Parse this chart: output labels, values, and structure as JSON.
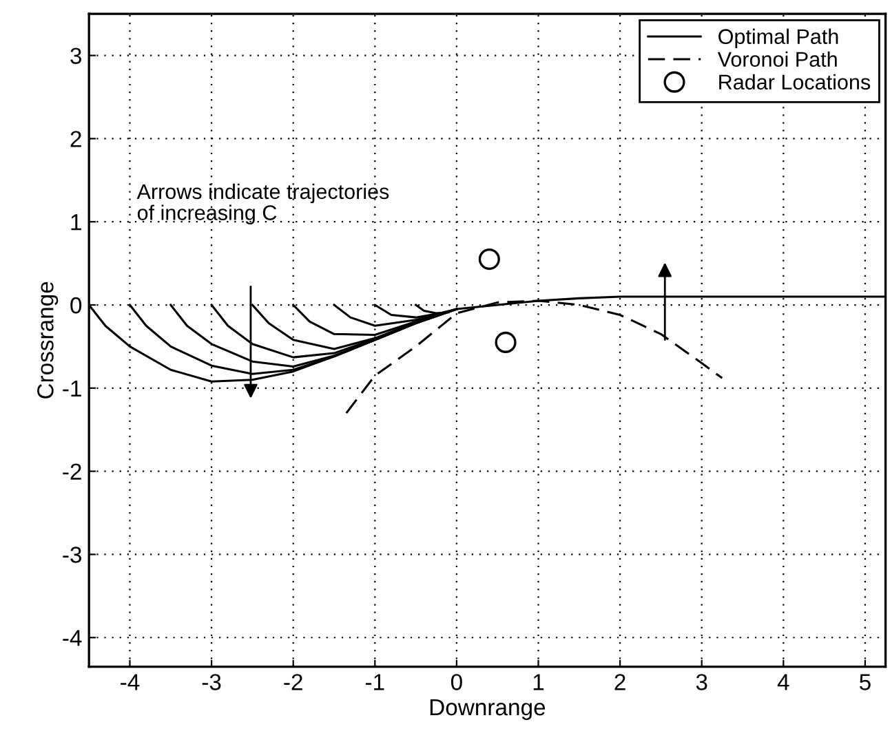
{
  "chart_data": {
    "type": "line",
    "xlabel": "Downrange",
    "ylabel": "Crossrange",
    "xlim": [
      -4.5,
      5.25
    ],
    "ylim": [
      -4.35,
      3.5
    ],
    "xticks": [
      -4,
      -3,
      -2,
      -1,
      0,
      1,
      2,
      3,
      4,
      5
    ],
    "yticks": [
      -4,
      -3,
      -2,
      -1,
      0,
      1,
      2,
      3
    ],
    "grid": true,
    "legend": "top right",
    "annotations": [
      "Arrows indicate trajectories\nof increasing C"
    ],
    "series": [
      {
        "name": "Optimal Path",
        "color": "#000000",
        "line_style": "solid",
        "x": [
          -4.5,
          -4.3,
          -4,
          -3.5,
          -3,
          -2.5,
          -2,
          -1.5,
          -1,
          -0.5,
          0,
          0.5,
          1,
          1.5,
          2,
          3,
          5.25
        ],
        "values": [
          0,
          -0.25,
          -0.5,
          -0.78,
          -0.92,
          -0.9,
          -0.8,
          -0.62,
          -0.42,
          -0.22,
          -0.05,
          0.0,
          0.05,
          0.08,
          0.1,
          0.1,
          0.1
        ]
      },
      {
        "color": "#000000",
        "line_style": "solid",
        "x": [
          -4,
          -3.8,
          -3.5,
          -3,
          -2.5,
          -2,
          -1.5,
          -1,
          -0.5,
          0
        ],
        "values": [
          0,
          -0.25,
          -0.5,
          -0.73,
          -0.83,
          -0.78,
          -0.62,
          -0.42,
          -0.22,
          -0.05
        ]
      },
      {
        "color": "#000000",
        "line_style": "solid",
        "x": [
          -3.5,
          -3.3,
          -3,
          -2.5,
          -2,
          -1.5,
          -1,
          -0.5,
          0
        ],
        "values": [
          0,
          -0.25,
          -0.47,
          -0.68,
          -0.74,
          -0.61,
          -0.42,
          -0.22,
          -0.05
        ]
      },
      {
        "color": "#000000",
        "line_style": "solid",
        "x": [
          -3,
          -2.8,
          -2.5,
          -2,
          -1.5,
          -1,
          -0.5,
          0
        ],
        "values": [
          0,
          -0.25,
          -0.47,
          -0.63,
          -0.58,
          -0.41,
          -0.22,
          -0.05
        ]
      },
      {
        "color": "#000000",
        "line_style": "solid",
        "x": [
          -2.5,
          -2.3,
          -2,
          -1.5,
          -1,
          -0.5,
          0
        ],
        "values": [
          0,
          -0.22,
          -0.42,
          -0.53,
          -0.4,
          -0.21,
          -0.05
        ]
      },
      {
        "color": "#000000",
        "line_style": "solid",
        "x": [
          -2,
          -1.8,
          -1.5,
          -1,
          -0.5,
          0
        ],
        "values": [
          0,
          -0.2,
          -0.35,
          -0.36,
          -0.2,
          -0.05
        ]
      },
      {
        "color": "#000000",
        "line_style": "solid",
        "x": [
          -1.5,
          -1.3,
          -1,
          -0.5,
          0
        ],
        "values": [
          0,
          -0.15,
          -0.25,
          -0.18,
          -0.05
        ]
      },
      {
        "color": "#000000",
        "line_style": "solid",
        "x": [
          -1,
          -0.8,
          -0.5,
          -0.2,
          0
        ],
        "values": [
          0,
          -0.12,
          -0.15,
          -0.1,
          -0.05
        ]
      },
      {
        "color": "#000000",
        "line_style": "solid",
        "x": [
          -0.5,
          -0.4,
          -0.25,
          -0.1
        ],
        "values": [
          0,
          -0.07,
          -0.1,
          -0.09
        ]
      },
      {
        "name": "Voronoi Path",
        "color": "#000000",
        "line_style": "dashed",
        "x": [
          -1.35,
          -1,
          -0.5,
          0,
          0.5,
          1,
          1.5,
          2,
          2.5,
          3,
          3.25
        ],
        "values": [
          -1.3,
          -0.85,
          -0.5,
          -0.1,
          0.03,
          0.05,
          0.0,
          -0.12,
          -0.35,
          -0.7,
          -0.88
        ]
      },
      {
        "name": "Radar Locations",
        "type": "scatter",
        "marker": "circle",
        "color": "#000000",
        "x": [
          0.4,
          0.6
        ],
        "values": [
          0.55,
          -0.45
        ]
      }
    ]
  }
}
